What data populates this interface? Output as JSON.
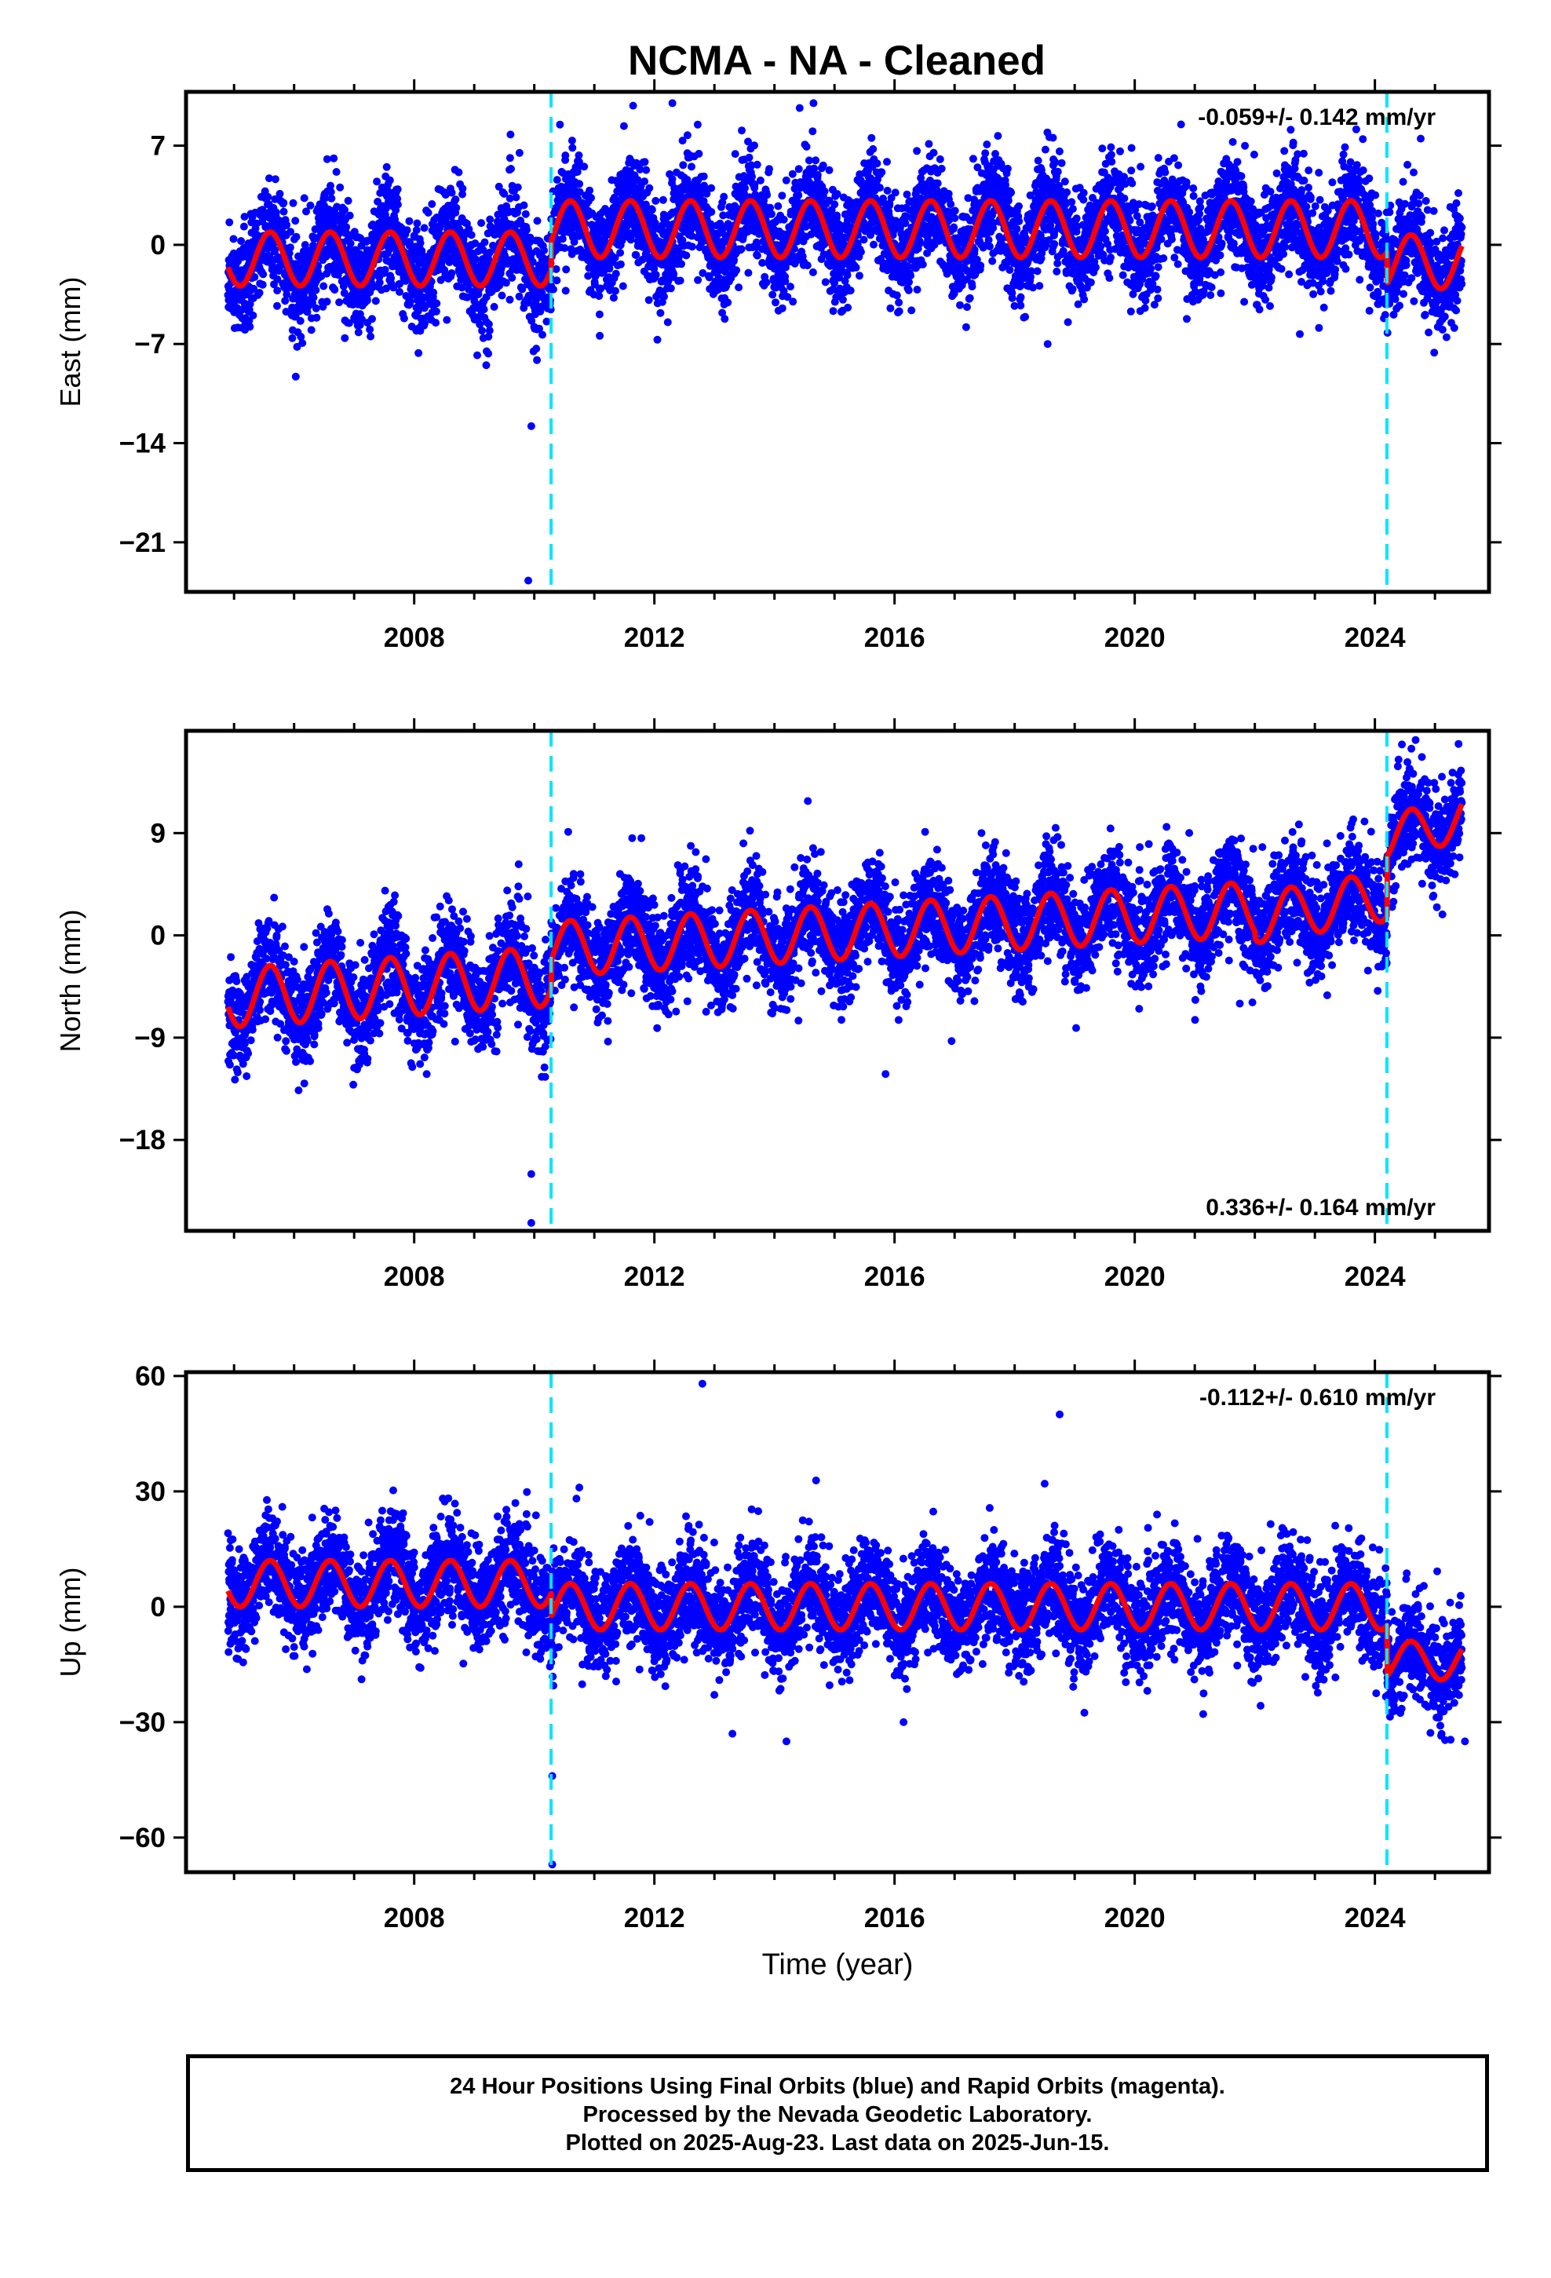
{
  "title": "NCMA  - NA - Cleaned",
  "colors": {
    "final_orbits": "#0000ff",
    "model_fit": "#ff0000",
    "offset_marker": "#00e5ff",
    "frame": "#000000"
  },
  "footer": {
    "line1": "24 Hour Positions Using Final Orbits (blue) and Rapid Orbits (magenta).",
    "line2": "Processed by the Nevada Geodetic Laboratory.",
    "line3": "Plotted on 2025-Aug-23. Last data on 2025-Jun-15."
  },
  "chart_data": [
    {
      "type": "scatter",
      "component": "east",
      "ylabel": "East (mm)",
      "xlabel": "",
      "xlim": [
        2004.2,
        2025.9
      ],
      "ylim": [
        -24.5,
        10.8
      ],
      "yticks": [
        7,
        0,
        -7,
        -14,
        -21
      ],
      "xticks": [
        2008,
        2012,
        2016,
        2020,
        2024
      ],
      "rate_label": "-0.059+/- 0.142 mm/yr",
      "rate_position": "top-right",
      "offsets": [
        2010.28,
        2024.2
      ],
      "model": {
        "start": 2004.9,
        "end": 2025.45,
        "segments": [
          {
            "from": 2004.9,
            "to": 2010.28,
            "level": -1.0,
            "amplitude": 1.9
          },
          {
            "from": 2010.28,
            "to": 2024.2,
            "level": 1.1,
            "amplitude": 2.0
          },
          {
            "from": 2024.2,
            "to": 2025.45,
            "level": -1.2,
            "amplitude": 1.9
          }
        ],
        "scatter_sd": 1.8
      },
      "outliers": [
        [
          2009.9,
          -23.7
        ],
        [
          2009.95,
          -12.8
        ],
        [
          2012.3,
          10.0
        ],
        [
          2014.65,
          10.0
        ],
        [
          2009.2,
          -8.5
        ],
        [
          2009.05,
          -7.8
        ],
        [
          2006.05,
          -7.2
        ],
        [
          2022.75,
          -6.3
        ],
        [
          2018.55,
          -7.0
        ],
        [
          2012.05,
          -6.7
        ]
      ],
      "grid": false
    },
    {
      "type": "scatter",
      "component": "north",
      "ylabel": "North (mm)",
      "xlabel": "",
      "xlim": [
        2004.2,
        2025.9
      ],
      "ylim": [
        -26.0,
        18.0
      ],
      "yticks": [
        9,
        0,
        -9,
        -18
      ],
      "xticks": [
        2008,
        2012,
        2016,
        2020,
        2024
      ],
      "rate_label": "0.336+/- 0.164 mm/yr",
      "rate_position": "bottom-right",
      "offsets": [
        2010.28,
        2024.2
      ],
      "model": {
        "start": 2004.9,
        "end": 2025.45,
        "segments": [
          {
            "from": 2004.9,
            "to": 2010.28,
            "level": -5.5,
            "slope": 0.35,
            "amplitude": 2.6
          },
          {
            "from": 2010.28,
            "to": 2022.0,
            "level": -1.2,
            "slope": 0.3,
            "amplitude": 2.4
          },
          {
            "from": 2022.0,
            "to": 2024.2,
            "level": 1.5,
            "slope": 0.9,
            "amplitude": 2.2
          },
          {
            "from": 2024.2,
            "to": 2025.45,
            "level": 8.5,
            "slope": 1.5,
            "amplitude": 2.0
          }
        ],
        "scatter_sd": 2.2
      },
      "outliers": [
        [
          2009.95,
          -25.3
        ],
        [
          2009.95,
          -21.0
        ],
        [
          2015.85,
          -12.2
        ],
        [
          2016.95,
          -9.3
        ],
        [
          2021.75,
          -6.0
        ],
        [
          2012.55,
          -5.8
        ],
        [
          2014.4,
          -7.5
        ],
        [
          2024.45,
          16.8
        ]
      ],
      "grid": false
    },
    {
      "type": "scatter",
      "component": "up",
      "ylabel": "Up (mm)",
      "xlabel": "Time (year)",
      "xlim": [
        2004.2,
        2025.9
      ],
      "ylim": [
        -69.0,
        61.0
      ],
      "yticks": [
        60,
        30,
        0,
        -30,
        -60
      ],
      "xticks": [
        2008,
        2012,
        2016,
        2020,
        2024
      ],
      "rate_label": "-0.112+/- 0.610 mm/yr",
      "rate_position": "top-right",
      "offsets": [
        2010.28,
        2024.2
      ],
      "model": {
        "start": 2004.9,
        "end": 2025.45,
        "segments": [
          {
            "from": 2004.9,
            "to": 2010.28,
            "level": 6.0,
            "amplitude": 6.0
          },
          {
            "from": 2010.28,
            "to": 2024.2,
            "level": 0.0,
            "amplitude": 6.0
          },
          {
            "from": 2024.2,
            "to": 2025.45,
            "level": -14.0,
            "amplitude": 5.0
          }
        ],
        "scatter_sd": 6.5
      },
      "outliers": [
        [
          2010.3,
          -67.0
        ],
        [
          2010.3,
          -44.0
        ],
        [
          2012.8,
          58.0
        ],
        [
          2018.75,
          50.0
        ],
        [
          2014.2,
          -35.0
        ],
        [
          2016.15,
          -30.0
        ],
        [
          2013.3,
          -33.0
        ],
        [
          2018.5,
          32.0
        ],
        [
          2010.75,
          31.0
        ],
        [
          2025.5,
          -35.0
        ]
      ],
      "grid": false
    }
  ]
}
